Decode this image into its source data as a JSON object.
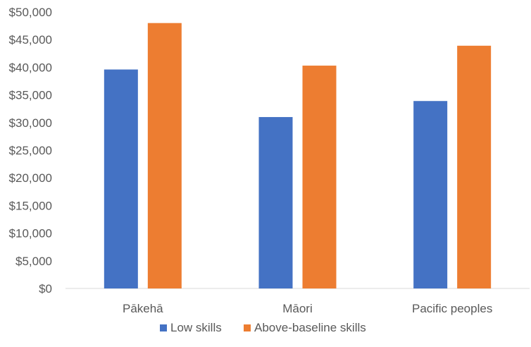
{
  "chart_data": {
    "type": "bar",
    "categories": [
      "Pākehā",
      "Māori",
      "Pacific peoples"
    ],
    "series": [
      {
        "name": "Low skills",
        "color": "#4472C4",
        "values": [
          39600,
          31000,
          33900
        ]
      },
      {
        "name": "Above-baseline skills",
        "color": "#ED7D31",
        "values": [
          48000,
          40300,
          43900
        ]
      }
    ],
    "ylim": [
      0,
      50000
    ],
    "y_ticks": [
      0,
      5000,
      10000,
      15000,
      20000,
      25000,
      30000,
      35000,
      40000,
      45000,
      50000
    ],
    "y_tick_labels": [
      "$0",
      "$5,000",
      "$10,000",
      "$15,000",
      "$20,000",
      "$25,000",
      "$30,000",
      "$35,000",
      "$40,000",
      "$45,000",
      "$50,000"
    ],
    "grid": false,
    "legend_position": "bottom"
  }
}
